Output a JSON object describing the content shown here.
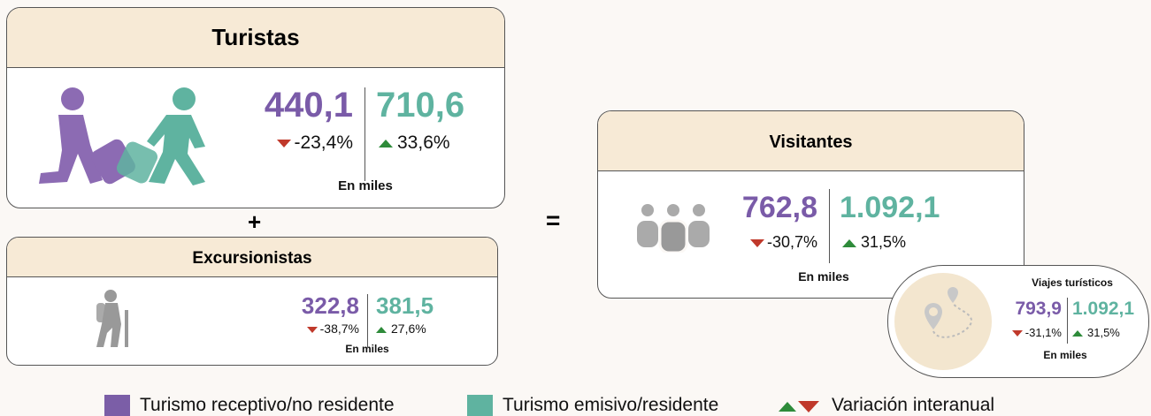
{
  "turistas": {
    "title": "Turistas",
    "receptivo": "440,1",
    "emisivo": "710,6",
    "var_receptivo": "-23,4%",
    "var_emisivo": "33,6%",
    "unit": "En miles"
  },
  "plus": "+",
  "excursionistas": {
    "title": "Excursionistas",
    "receptivo": "322,8",
    "emisivo": "381,5",
    "var_receptivo": "-38,7%",
    "var_emisivo": "27,6%",
    "unit": "En miles"
  },
  "equals": "=",
  "visitantes": {
    "title": "Visitantes",
    "receptivo": "762,8",
    "emisivo": "1.092,1",
    "var_receptivo": "-30,7%",
    "var_emisivo": "31,5%",
    "unit": "En miles"
  },
  "viajes": {
    "title": "Viajes turísticos",
    "receptivo": "793,9",
    "emisivo": "1.092,1",
    "var_receptivo": "-31,1%",
    "var_emisivo": "31,5%",
    "unit": "En miles"
  },
  "legend": {
    "items": [
      "Turismo receptivo/no residente",
      "Turismo emisivo/residente",
      "Variación interanual"
    ]
  }
}
